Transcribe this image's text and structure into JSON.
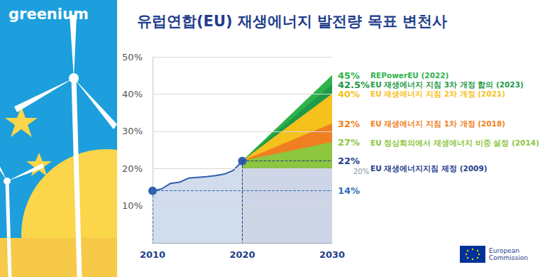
{
  "chart_data": {
    "type": "line",
    "title": "유럽연합(EU) 재생에너지 발전량 목표 변천사",
    "xlim": [
      2010,
      2030
    ],
    "xticks": [
      2010,
      2020,
      2030
    ],
    "ylim": [
      0,
      50
    ],
    "yticks": [
      {
        "value": 10,
        "label": "10%"
      },
      {
        "value": 20,
        "label": "20%"
      },
      {
        "value": 30,
        "label": "30%"
      },
      {
        "value": 40,
        "label": "40%"
      },
      {
        "value": 50,
        "label": "50%"
      }
    ],
    "grid": true,
    "series": [
      {
        "type": "area",
        "name": "REPowerEU (2022)",
        "color": "#2db34a",
        "x": [
          2020,
          2030
        ],
        "values": [
          22,
          45
        ],
        "value_labels": [
          null,
          "45%"
        ]
      },
      {
        "type": "area",
        "name": "EU 재생에너지 지침 3차 개정 합의 (2023)",
        "color": "#1e9a48",
        "x": [
          2020,
          2030
        ],
        "values": [
          22,
          42.5
        ],
        "value_labels": [
          null,
          "42.5%"
        ]
      },
      {
        "type": "area",
        "name": "EU 재생에너지 지침 2차 개정 (2021)",
        "color": "#f5c11c",
        "x": [
          2020,
          2030
        ],
        "values": [
          22,
          40
        ],
        "value_labels": [
          null,
          "40%"
        ]
      },
      {
        "type": "area",
        "name": "EU 재생에너지 지침 1차 개정 (2018)",
        "color": "#f07f22",
        "x": [
          2020,
          2030
        ],
        "values": [
          22,
          32
        ],
        "value_labels": [
          null,
          "32%"
        ]
      },
      {
        "type": "area",
        "name": "EU 정상회의에서 재생에너지 비중 설정 (2014)",
        "color": "#8dc63f",
        "x": [
          2020,
          2030
        ],
        "values": [
          22,
          27
        ],
        "value_labels": [
          null,
          "27%"
        ]
      },
      {
        "type": "area",
        "name": "EU 재생에너지지침 제정 (2009)",
        "color": "#1f3e8c",
        "line_style": "dashed",
        "x": [
          2020,
          2030
        ],
        "values": [
          20,
          20
        ],
        "value_labels": [
          null,
          "20%"
        ]
      },
      {
        "type": "line",
        "color": "#2f5fae",
        "marker": "circle",
        "x": [
          2010,
          2011,
          2012,
          2013,
          2014,
          2015,
          2016,
          2017,
          2018,
          2019,
          2020
        ],
        "values": [
          14,
          14.5,
          16,
          16.3,
          17.4,
          17.6,
          17.8,
          18.1,
          18.5,
          19.5,
          22
        ]
      }
    ],
    "annotations": [
      {
        "x": 2020,
        "y": 22,
        "text": "22%",
        "color": "#1f3e8c"
      },
      {
        "x": 2010,
        "y": 14,
        "text": "14%",
        "color": "#2f6db5"
      }
    ]
  },
  "branding": {
    "logo": "greenium",
    "source": "European Commission"
  }
}
